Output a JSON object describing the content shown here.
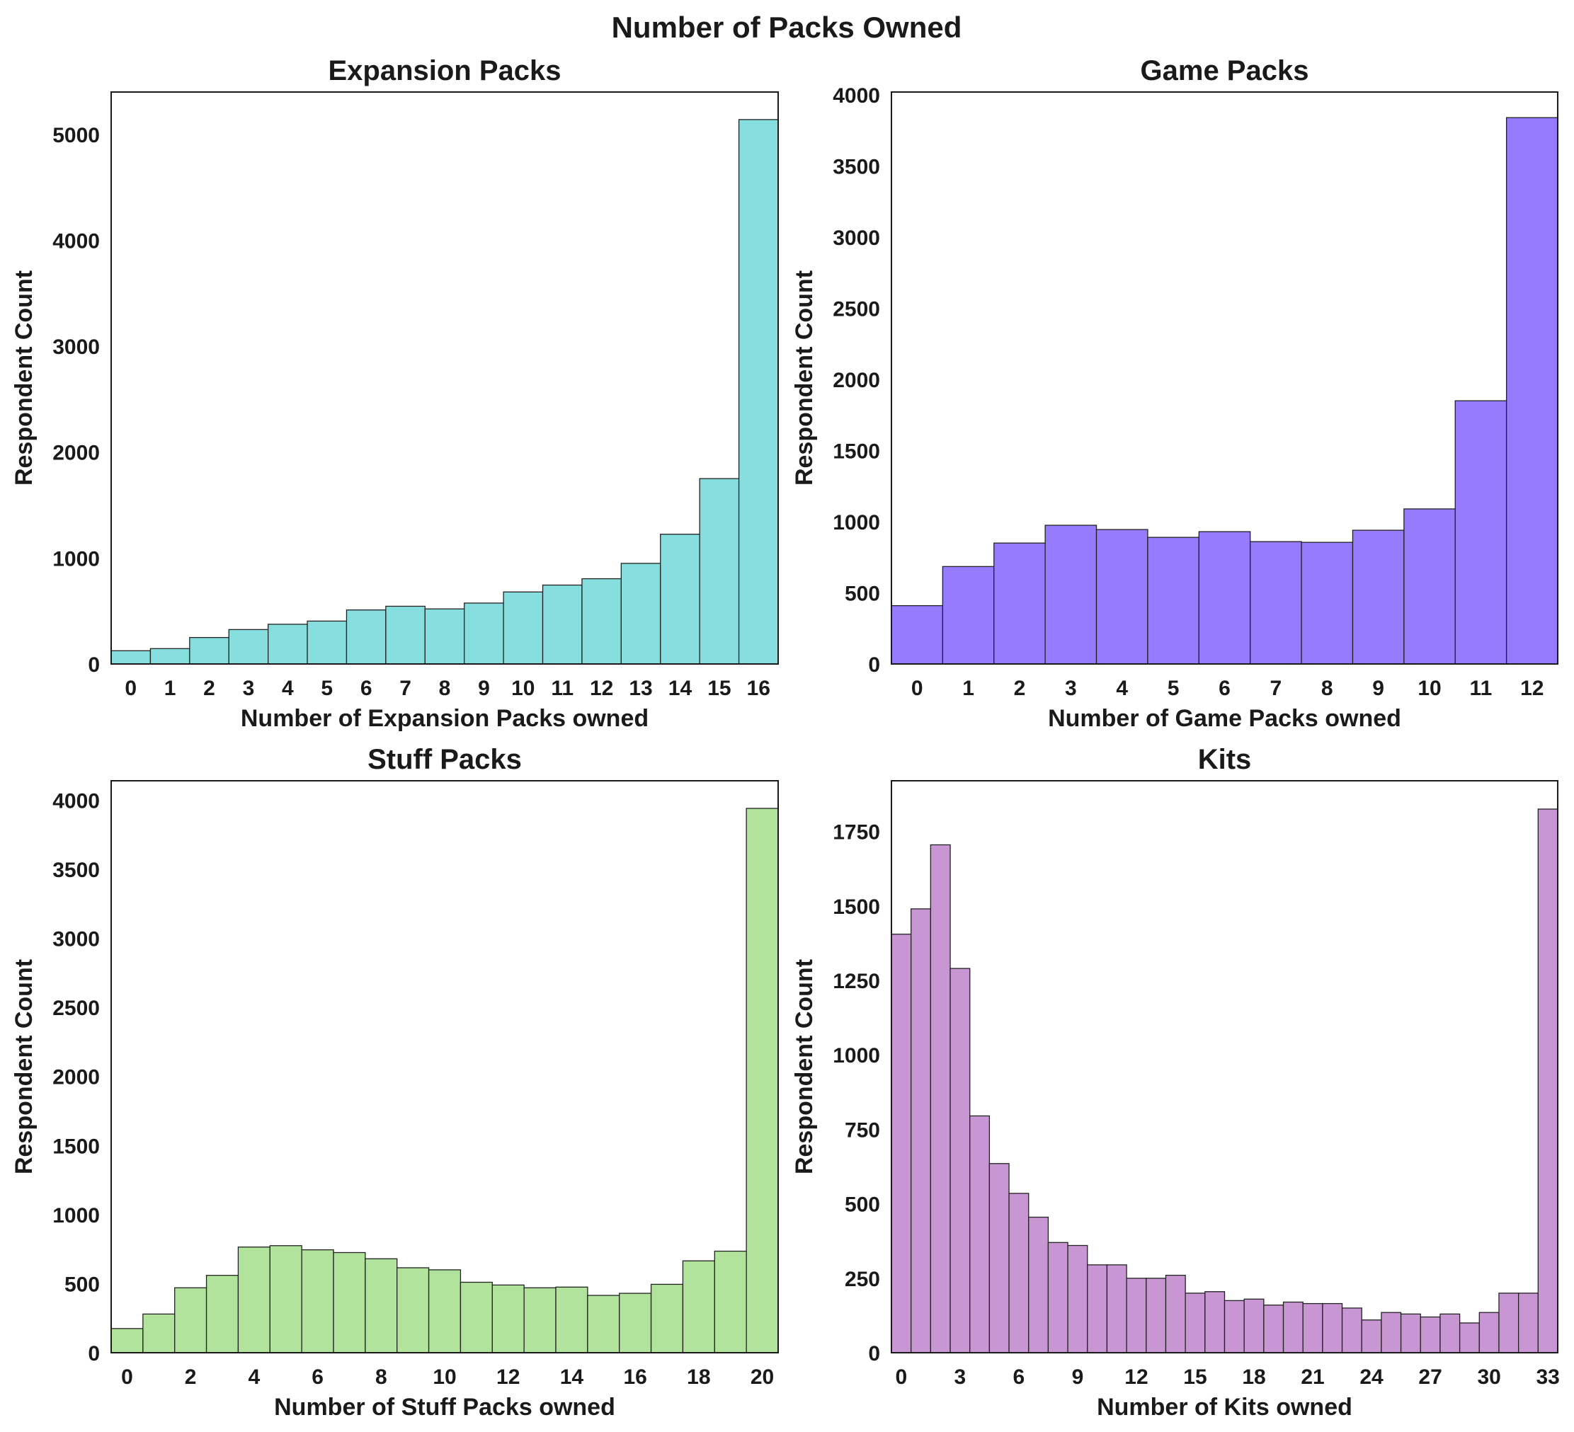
{
  "figure_title": "Number of Packs Owned",
  "chart_data": [
    {
      "type": "bar",
      "title": "Expansion Packs",
      "xlabel": "Number of Expansion Packs owned",
      "ylabel": "Respondent Count",
      "color": "#87DEDE",
      "x": [
        0,
        1,
        2,
        3,
        4,
        5,
        6,
        7,
        8,
        9,
        10,
        11,
        12,
        13,
        14,
        15,
        16
      ],
      "values": [
        125,
        145,
        250,
        325,
        375,
        405,
        510,
        545,
        520,
        575,
        680,
        745,
        805,
        950,
        1225,
        1750,
        5140
      ],
      "ylim": [
        0,
        5400
      ],
      "yticks": [
        0,
        1000,
        2000,
        3000,
        4000,
        5000
      ],
      "xticks": [
        0,
        1,
        2,
        3,
        4,
        5,
        6,
        7,
        8,
        9,
        10,
        11,
        12,
        13,
        14,
        15,
        16
      ],
      "grid": false
    },
    {
      "type": "bar",
      "title": "Game Packs",
      "xlabel": "Number of Game Packs owned",
      "ylabel": "Respondent Count",
      "color": "#967BFF",
      "x": [
        0,
        1,
        2,
        3,
        4,
        5,
        6,
        7,
        8,
        9,
        10,
        11,
        12
      ],
      "values": [
        410,
        685,
        850,
        975,
        945,
        890,
        930,
        860,
        855,
        940,
        1090,
        1850,
        3840
      ],
      "ylim": [
        0,
        4020
      ],
      "yticks": [
        0,
        500,
        1000,
        1500,
        2000,
        2500,
        3000,
        3500,
        4000
      ],
      "xticks": [
        0,
        1,
        2,
        3,
        4,
        5,
        6,
        7,
        8,
        9,
        10,
        11,
        12
      ],
      "grid": false
    },
    {
      "type": "bar",
      "title": "Stuff Packs",
      "xlabel": "Number of Stuff Packs owned",
      "ylabel": "Respondent Count",
      "color": "#B2E39C",
      "x": [
        0,
        1,
        2,
        3,
        4,
        5,
        6,
        7,
        8,
        9,
        10,
        11,
        12,
        13,
        14,
        15,
        16,
        17,
        18,
        19,
        20
      ],
      "values": [
        175,
        280,
        470,
        560,
        765,
        775,
        745,
        725,
        680,
        615,
        600,
        510,
        490,
        470,
        475,
        415,
        430,
        495,
        665,
        735,
        3940
      ],
      "ylim": [
        0,
        4140
      ],
      "yticks": [
        0,
        500,
        1000,
        1500,
        2000,
        2500,
        3000,
        3500,
        4000
      ],
      "xticks": [
        0,
        2,
        4,
        6,
        8,
        10,
        12,
        14,
        16,
        18,
        20
      ],
      "grid": false
    },
    {
      "type": "bar",
      "title": "Kits",
      "xlabel": "Number of Kits owned",
      "ylabel": "Respondent Count",
      "color": "#C896D2",
      "x": [
        0,
        1,
        2,
        3,
        4,
        5,
        6,
        7,
        8,
        9,
        10,
        11,
        12,
        13,
        14,
        15,
        16,
        17,
        18,
        19,
        20,
        21,
        22,
        23,
        24,
        25,
        26,
        27,
        28,
        29,
        30,
        31,
        32,
        33
      ],
      "values": [
        1405,
        1490,
        1705,
        1290,
        795,
        635,
        535,
        455,
        370,
        360,
        295,
        295,
        250,
        250,
        260,
        200,
        205,
        175,
        180,
        160,
        170,
        165,
        165,
        150,
        110,
        135,
        130,
        120,
        130,
        100,
        135,
        200,
        200,
        1825
      ],
      "ylim": [
        0,
        1920
      ],
      "yticks": [
        0,
        250,
        500,
        750,
        1000,
        1250,
        1500,
        1750
      ],
      "xticks": [
        0,
        3,
        6,
        9,
        12,
        15,
        18,
        21,
        24,
        27,
        30,
        33
      ],
      "grid": false
    }
  ]
}
